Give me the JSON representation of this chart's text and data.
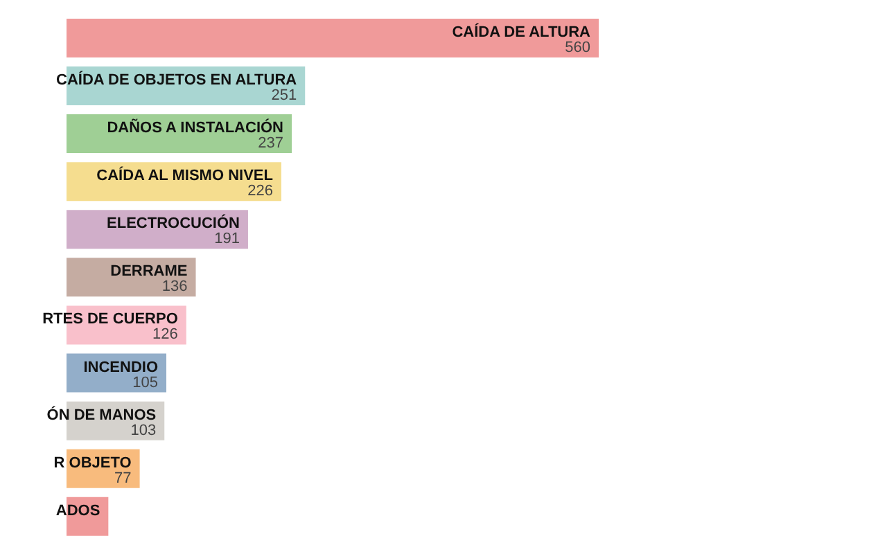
{
  "chart_data": {
    "type": "bar",
    "orientation": "horizontal",
    "categories": [
      "CAÍDA DE ALTURA",
      "CAÍDA DE OBJETOS EN ALTURA",
      "DAÑOS A INSTALACIÓN",
      "CAÍDA AL MISMO NIVEL",
      "ELECTROCUCIÓN",
      "DERRAME",
      "RTES DE CUERPO",
      "INCENDIO",
      "ÓN DE MANOS",
      "R OBJETO",
      "ADOS"
    ],
    "values": [
      560,
      251,
      237,
      226,
      191,
      136,
      126,
      105,
      103,
      77,
      44
    ],
    "value_labels": [
      "560",
      "251",
      "237",
      "226",
      "191",
      "136",
      "126",
      "105",
      "103",
      "77",
      null
    ],
    "colors": [
      "#f09a9a",
      "#a9d6d2",
      "#9fcf95",
      "#f5dd8f",
      "#d0aec9",
      "#c5aca2",
      "#f9c0cb",
      "#93aec9",
      "#d5d2cd",
      "#f8bb7d",
      "#f09a9a"
    ]
  }
}
